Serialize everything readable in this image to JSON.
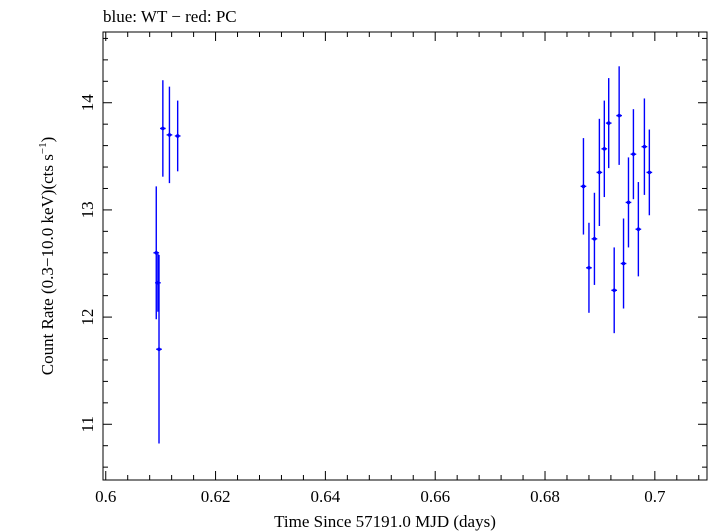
{
  "chart_data": {
    "type": "scatter",
    "title": "blue: WT − red: PC",
    "xlabel": "Time Since 57191.0 MJD (days)",
    "ylabel_main": "Count Rate (0.3−10.0 keV)(cts s",
    "ylabel_sup": "−1",
    "ylabel_close": ")",
    "xlim": [
      0.5995,
      0.7095
    ],
    "ylim": [
      10.48,
      14.66
    ],
    "xticks": [
      0.6,
      0.62,
      0.64,
      0.66,
      0.68,
      0.7
    ],
    "xtick_labels": [
      "0.6",
      "0.62",
      "0.64",
      "0.66",
      "0.68",
      "0.7"
    ],
    "yticks": [
      11,
      12,
      13,
      14
    ],
    "ytick_labels": [
      "11",
      "12",
      "13",
      "14"
    ],
    "colors": {
      "WT": "#0000ff",
      "PC": "#ff0000"
    },
    "series": [
      {
        "name": "WT",
        "color": "#0000ff",
        "points": [
          {
            "x": 0.6092,
            "y": 12.6,
            "yerr": 0.62,
            "xerr": 0.00015
          },
          {
            "x": 0.6095,
            "y": 12.32,
            "yerr": 0.27,
            "xerr": 0.00015
          },
          {
            "x": 0.6097,
            "y": 11.7,
            "yerr": 0.88,
            "xerr": 0.00015
          },
          {
            "x": 0.6104,
            "y": 13.76,
            "yerr": 0.45,
            "xerr": 0.00015
          },
          {
            "x": 0.6116,
            "y": 13.7,
            "yerr": 0.45,
            "xerr": 0.00015
          },
          {
            "x": 0.6131,
            "y": 13.69,
            "yerr": 0.33,
            "xerr": 0.00015
          },
          {
            "x": 0.687,
            "y": 13.22,
            "yerr": 0.45,
            "xerr": 0.00015
          },
          {
            "x": 0.688,
            "y": 12.46,
            "yerr": 0.42,
            "xerr": 0.00015
          },
          {
            "x": 0.689,
            "y": 12.73,
            "yerr": 0.43,
            "xerr": 0.00015
          },
          {
            "x": 0.6899,
            "y": 13.35,
            "yerr": 0.5,
            "xerr": 0.00015
          },
          {
            "x": 0.6908,
            "y": 13.57,
            "yerr": 0.45,
            "xerr": 0.00015
          },
          {
            "x": 0.6916,
            "y": 13.81,
            "yerr": 0.42,
            "xerr": 0.00015
          },
          {
            "x": 0.6926,
            "y": 12.25,
            "yerr": 0.4,
            "xerr": 0.00015
          },
          {
            "x": 0.6935,
            "y": 13.88,
            "yerr": 0.46,
            "xerr": 0.00015
          },
          {
            "x": 0.6943,
            "y": 12.5,
            "yerr": 0.42,
            "xerr": 0.00015
          },
          {
            "x": 0.6952,
            "y": 13.07,
            "yerr": 0.42,
            "xerr": 0.00015
          },
          {
            "x": 0.6961,
            "y": 13.52,
            "yerr": 0.42,
            "xerr": 0.00015
          },
          {
            "x": 0.697,
            "y": 12.82,
            "yerr": 0.44,
            "xerr": 0.00015
          },
          {
            "x": 0.6981,
            "y": 13.59,
            "yerr": 0.45,
            "xerr": 0.00015
          },
          {
            "x": 0.699,
            "y": 13.35,
            "yerr": 0.4,
            "xerr": 0.00015
          }
        ]
      }
    ]
  }
}
